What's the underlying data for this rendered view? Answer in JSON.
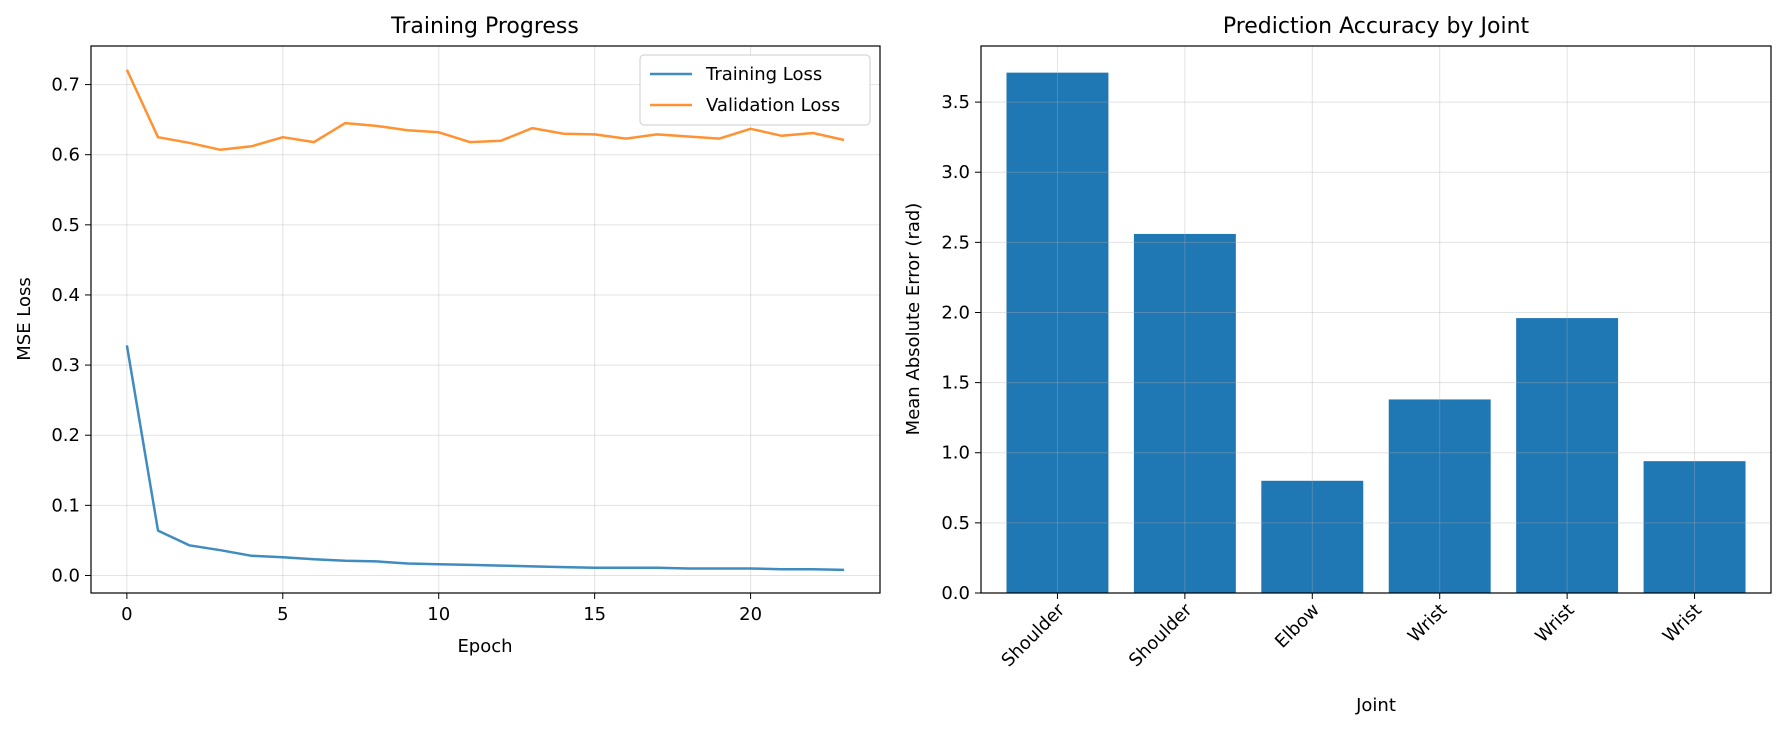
{
  "chart_data": [
    {
      "type": "line",
      "title": "Training Progress",
      "xlabel": "Epoch",
      "ylabel": "MSE Loss",
      "xlim": [
        -1.15,
        24.15
      ],
      "ylim": [
        -0.025,
        0.755
      ],
      "xticks": [
        "0",
        "5",
        "10",
        "15",
        "20"
      ],
      "yticks": [
        "0.0",
        "0.1",
        "0.2",
        "0.3",
        "0.4",
        "0.5",
        "0.6",
        "0.7"
      ],
      "grid": true,
      "legend_position": "top-right",
      "x": [
        0,
        1,
        2,
        3,
        4,
        5,
        6,
        7,
        8,
        9,
        10,
        11,
        12,
        13,
        14,
        15,
        16,
        17,
        18,
        19,
        20,
        21,
        22,
        23
      ],
      "series": [
        {
          "name": "Training Loss",
          "color": "#1f77b4",
          "values": [
            0.328,
            0.064,
            0.043,
            0.036,
            0.028,
            0.026,
            0.023,
            0.021,
            0.02,
            0.017,
            0.016,
            0.015,
            0.014,
            0.013,
            0.012,
            0.011,
            0.011,
            0.011,
            0.01,
            0.01,
            0.01,
            0.009,
            0.009,
            0.008
          ]
        },
        {
          "name": "Validation Loss",
          "color": "#ff7f0e",
          "values": [
            0.721,
            0.625,
            0.617,
            0.607,
            0.612,
            0.625,
            0.618,
            0.645,
            0.641,
            0.635,
            0.632,
            0.618,
            0.62,
            0.638,
            0.63,
            0.629,
            0.623,
            0.629,
            0.626,
            0.623,
            0.637,
            0.627,
            0.631,
            0.621
          ]
        }
      ]
    },
    {
      "type": "bar",
      "title": "Prediction Accuracy by Joint",
      "xlabel": "Joint",
      "ylabel": "Mean Absolute Error (rad)",
      "categories": [
        "Shoulder",
        "Shoulder",
        "Elbow",
        "Wrist",
        "Wrist",
        "Wrist"
      ],
      "values": [
        3.71,
        2.56,
        0.8,
        1.38,
        1.96,
        0.94
      ],
      "color": "#1f77b4",
      "ylim": [
        0,
        3.9
      ],
      "yticks": [
        "0.0",
        "0.5",
        "1.0",
        "1.5",
        "2.0",
        "2.5",
        "3.0",
        "3.5"
      ],
      "grid": true
    }
  ]
}
